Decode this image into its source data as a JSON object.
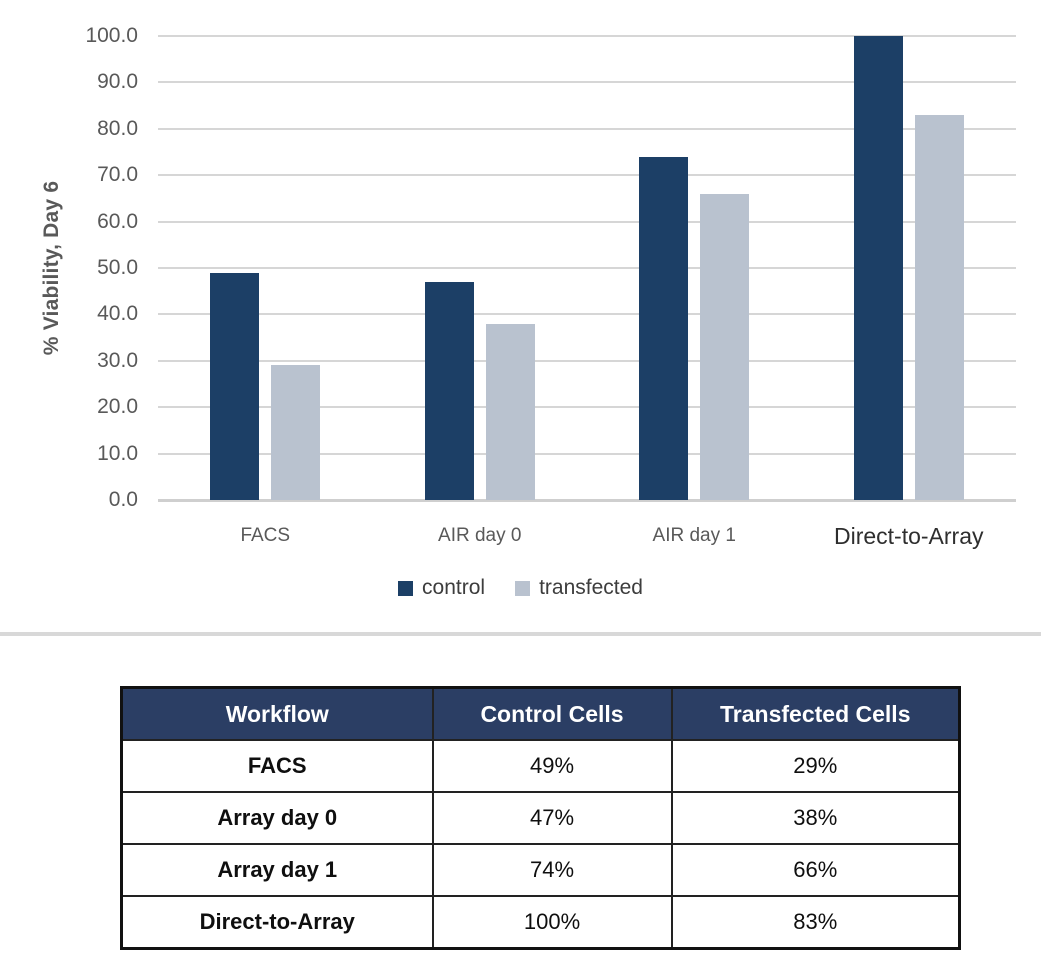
{
  "chart_data": {
    "type": "bar",
    "title": "",
    "categories": [
      "FACS",
      "AIR day 0",
      "AIR day 1",
      "Direct-to-Array"
    ],
    "series": [
      {
        "name": "control",
        "color": "#1c3f66",
        "values": [
          49,
          47,
          74,
          100
        ]
      },
      {
        "name": "transfected",
        "color": "#b9c2cf",
        "values": [
          29,
          38,
          66,
          83
        ]
      }
    ],
    "xlabel": "",
    "ylabel": "% Viability, Day 6",
    "ylim": [
      0,
      100
    ],
    "ytick_step": 10,
    "ytick_labels": [
      "0.0",
      "10.0",
      "20.0",
      "30.0",
      "40.0",
      "50.0",
      "60.0",
      "70.0",
      "80.0",
      "90.0",
      "100.0"
    ],
    "grid": true,
    "legend_position": "bottom"
  },
  "table": {
    "headers": [
      "Workflow",
      "Control Cells",
      "Transfected Cells"
    ],
    "rows": [
      [
        "FACS",
        "49%",
        "29%"
      ],
      [
        "Array day 0",
        "47%",
        "38%"
      ],
      [
        "Array day 1",
        "74%",
        "66%"
      ],
      [
        "Direct-to-Array",
        "100%",
        "83%"
      ]
    ],
    "header_bg": "#2b3e64"
  }
}
